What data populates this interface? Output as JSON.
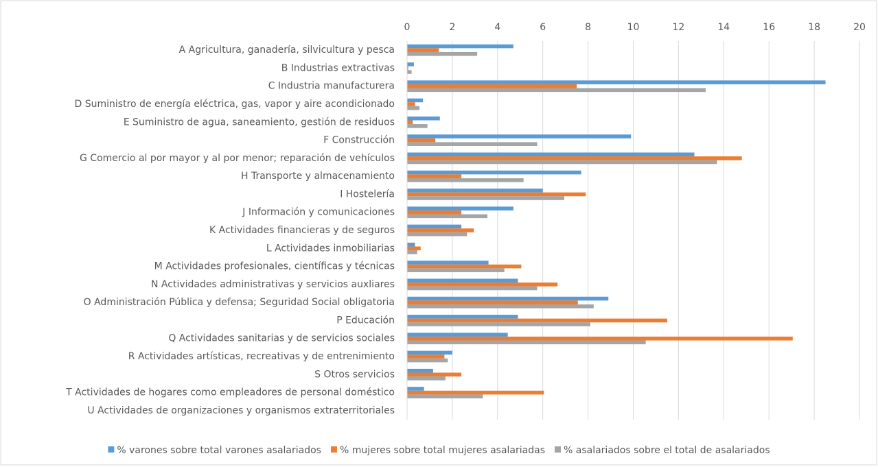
{
  "chart_data": {
    "type": "barh",
    "categories": [
      "A Agricultura, ganadería, silvicultura y pesca",
      "B Industrias extractivas",
      "C Industria manufacturera",
      "D Suministro de energía eléctrica, gas, vapor y aire acondicionado",
      "E Suministro de agua, saneamiento, gestión de residuos",
      "F Construcción",
      "G Comercio al por mayor y al por menor; reparación de vehículos",
      "H Transporte y almacenamiento",
      "I Hostelería",
      "J Información y comunicaciones",
      "K Actividades financieras y de seguros",
      "L Actividades inmobiliarias",
      "M Actividades profesionales, científicas y técnicas",
      "N Actividades administrativas y servicios auxliares",
      "O Administración Pública y defensa; Seguridad Social obligatoria",
      "P Educación",
      "Q Actividades sanitarias y de servicios sociales",
      "R Actividades artísticas, recreativas y de entrenimiento",
      "S Otros servicios",
      "T Actividades de hogares como empleadores de personal doméstico",
      "U Actividades de organizaciones y organismos extraterritoriales"
    ],
    "series": [
      {
        "name": "% varones sobre total varones asalariados",
        "color": "#5b9bd5",
        "values": [
          4.7,
          0.3,
          18.5,
          0.7,
          1.45,
          9.9,
          12.7,
          7.7,
          6.0,
          4.7,
          2.4,
          0.35,
          3.6,
          4.9,
          8.9,
          4.9,
          4.45,
          2.0,
          1.15,
          0.75,
          0
        ]
      },
      {
        "name": "% mujeres sobre total mujeres asalariadas",
        "color": "#ed7d31",
        "values": [
          1.4,
          0.05,
          7.5,
          0.35,
          0.25,
          1.25,
          14.8,
          2.4,
          7.9,
          2.4,
          2.95,
          0.6,
          5.05,
          6.65,
          7.55,
          11.5,
          17.05,
          1.65,
          2.4,
          6.05,
          0
        ]
      },
      {
        "name": "% asalariados sobre el total de asalariados",
        "color": "#a5a5a5",
        "values": [
          3.1,
          0.2,
          13.2,
          0.55,
          0.9,
          5.75,
          13.7,
          5.15,
          6.95,
          3.55,
          2.65,
          0.45,
          4.3,
          5.75,
          8.25,
          8.1,
          10.55,
          1.8,
          1.7,
          3.35,
          0
        ]
      }
    ],
    "xlim": [
      0,
      20
    ],
    "xticks": [
      0,
      2,
      4,
      6,
      8,
      10,
      12,
      14,
      16,
      18,
      20
    ],
    "grid": true,
    "legend": "bottom"
  }
}
